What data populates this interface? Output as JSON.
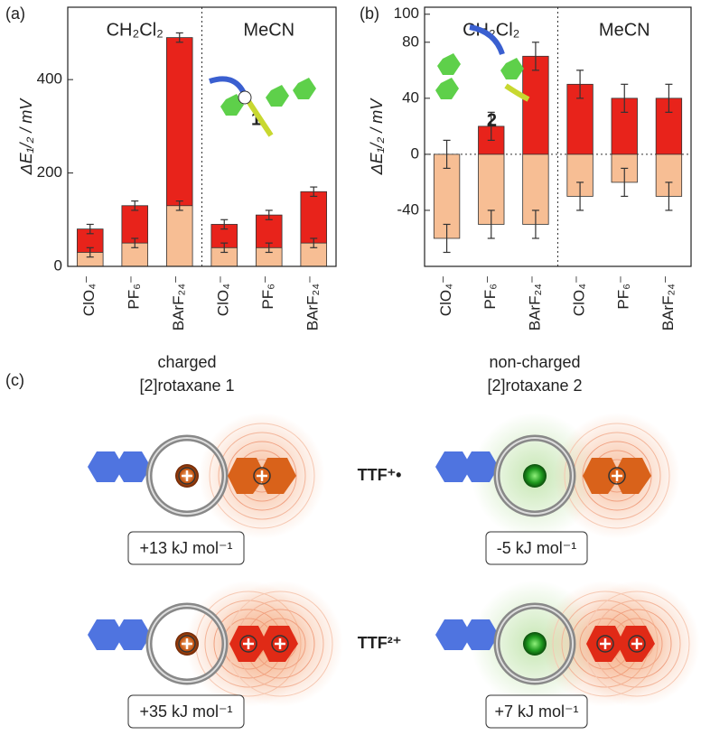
{
  "chart_data": [
    {
      "type": "bar",
      "panel_label": "(a)",
      "ylabel": "ΔE₁/₂ / mV",
      "categories": [
        "ClO₄⁻",
        "PF₆⁻",
        "BArF₂₄⁻",
        "ClO₄⁻",
        "PF₆⁻",
        "BArF₂₄⁻"
      ],
      "group_labels": [
        "CH₂Cl₂",
        "MeCN"
      ],
      "annotation": "1",
      "series": [
        {
          "color": "#e8231b",
          "values": [
            80,
            130,
            490,
            90,
            110,
            160
          ],
          "errors": [
            10,
            10,
            10,
            10,
            10,
            10
          ]
        },
        {
          "color": "#f7be94",
          "values": [
            30,
            50,
            130,
            40,
            40,
            50
          ],
          "errors": [
            10,
            10,
            10,
            10,
            10,
            10
          ]
        }
      ],
      "ylim": [
        0,
        555
      ],
      "yticks": [
        0,
        200,
        400
      ]
    },
    {
      "type": "bar",
      "panel_label": "(b)",
      "ylabel": "ΔE₁/₂ / mV",
      "categories": [
        "ClO₄⁻",
        "PF₆⁻",
        "BArF₂₄⁻",
        "ClO₄⁻",
        "PF₆⁻",
        "BArF₂₄⁻"
      ],
      "group_labels": [
        "CH₂Cl₂",
        "MeCN"
      ],
      "annotation": "2",
      "series": [
        {
          "color": "#e8231b",
          "values": [
            0,
            20,
            70,
            50,
            40,
            40
          ],
          "errors": [
            10,
            10,
            10,
            10,
            10,
            10
          ]
        },
        {
          "color": "#f7be94",
          "values": [
            -60,
            -50,
            -50,
            -30,
            -20,
            -30
          ],
          "errors": [
            10,
            10,
            10,
            10,
            10,
            10
          ]
        }
      ],
      "ylim": [
        -80,
        105
      ],
      "yticks": [
        -40,
        0,
        40,
        80,
        100
      ]
    }
  ],
  "diagram": {
    "label": "(c)",
    "columns": [
      {
        "heading": "charged",
        "subheading": "[2]rotaxane 1"
      },
      {
        "heading": "non-charged",
        "subheading": "[2]rotaxane 2"
      }
    ],
    "rows": [
      {
        "label": "TTF⁺•",
        "energies": [
          "+13 kJ mol⁻¹",
          "-5 kJ mol⁻¹"
        ]
      },
      {
        "label": "TTF²⁺",
        "energies": [
          "+35 kJ mol⁻¹",
          "+7 kJ mol⁻¹"
        ]
      }
    ]
  }
}
